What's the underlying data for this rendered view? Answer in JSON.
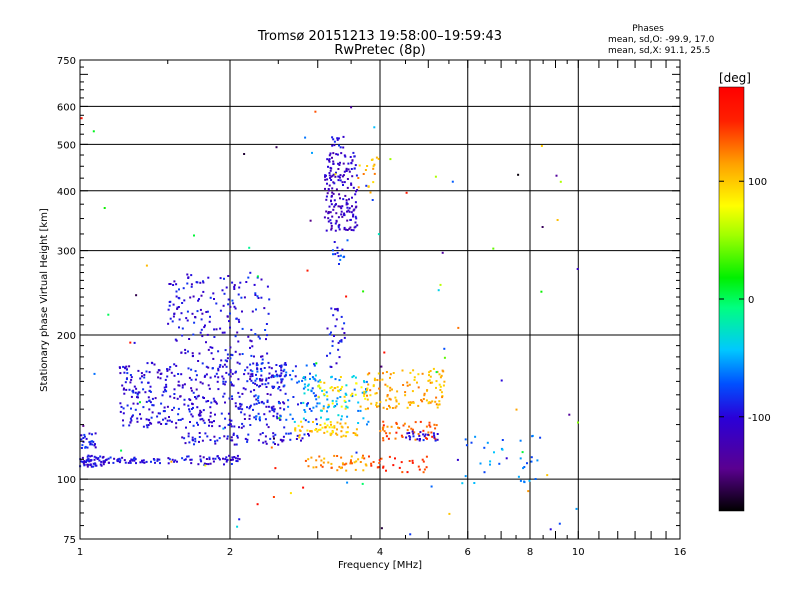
{
  "chart_data": {
    "type": "scatter",
    "title": "Tromsø 20151213 19:58:00–19:59:43",
    "subtitle": "RwPretec (8p)",
    "xlabel": "Frequency [MHz]",
    "ylabel": "Stationary phase Virtual Height [km]",
    "x_scale": "log",
    "y_scale": "log",
    "xlim": [
      1,
      16
    ],
    "ylim": [
      75,
      750
    ],
    "x_ticks": [
      1,
      2,
      4,
      6,
      8,
      10,
      16
    ],
    "x_tick_labels": [
      "1",
      "2",
      "4",
      "6",
      "8",
      "10",
      "16"
    ],
    "y_ticks": [
      75,
      100,
      200,
      300,
      400,
      500,
      600,
      750
    ],
    "y_tick_labels": [
      "75",
      "100",
      "200",
      "300",
      "400",
      "500",
      "600",
      "750"
    ],
    "grid": true,
    "grid_x": [
      2,
      4,
      6,
      8,
      10
    ],
    "grid_y": [
      100,
      200,
      300,
      400,
      500,
      600
    ],
    "stats": {
      "heading": "Phases",
      "line_o": "mean, sd,O: -99.9, 17.0",
      "line_x": "mean, sd,X:  91.1, 25.5"
    },
    "colorbar": {
      "label": "[deg]",
      "range": [
        -180,
        180
      ],
      "ticks": [
        -100,
        0,
        100
      ],
      "tick_labels": [
        "-100",
        "0",
        "100"
      ]
    },
    "clusters": [
      {
        "f": [
          1.0,
          1.12
        ],
        "h": [
          106,
          112
        ],
        "phase": -105,
        "n": 55
      },
      {
        "f": [
          1.12,
          1.45
        ],
        "h": [
          108,
          111
        ],
        "phase": -100,
        "n": 45
      },
      {
        "f": [
          1.5,
          2.1
        ],
        "h": [
          107,
          112
        ],
        "phase": -100,
        "n": 55
      },
      {
        "f": [
          1.0,
          1.08
        ],
        "h": [
          116,
          125
        ],
        "phase": -95,
        "n": 25
      },
      {
        "f": [
          1.6,
          2.9
        ],
        "h": [
          118,
          125
        ],
        "phase": -100,
        "n": 70
      },
      {
        "f": [
          1.2,
          2.6
        ],
        "h": [
          128,
          175
        ],
        "phase": -100,
        "n": 420
      },
      {
        "f": [
          1.5,
          2.1
        ],
        "h": [
          175,
          270
        ],
        "phase": -100,
        "n": 140
      },
      {
        "f": [
          2.0,
          2.4
        ],
        "h": [
          165,
          270
        ],
        "phase": -95,
        "n": 60
      },
      {
        "f": [
          2.2,
          3.0
        ],
        "h": [
          130,
          175
        ],
        "phase": -80,
        "n": 90
      },
      {
        "f": [
          2.8,
          3.8
        ],
        "h": [
          130,
          165
        ],
        "phase": -50,
        "n": 80
      },
      {
        "f": [
          2.7,
          3.6
        ],
        "h": [
          122,
          132
        ],
        "phase": 100,
        "n": 60
      },
      {
        "f": [
          3.0,
          3.8
        ],
        "h": [
          140,
          160
        ],
        "phase": 90,
        "n": 40
      },
      {
        "f": [
          3.7,
          5.4
        ],
        "h": [
          140,
          170
        ],
        "phase": 110,
        "n": 120
      },
      {
        "f": [
          4.0,
          5.2
        ],
        "h": [
          120,
          132
        ],
        "phase": 135,
        "n": 50
      },
      {
        "f": [
          2.8,
          3.8
        ],
        "h": [
          104,
          112
        ],
        "phase": 120,
        "n": 45
      },
      {
        "f": [
          3.8,
          5.0
        ],
        "h": [
          103,
          112
        ],
        "phase": 150,
        "n": 30
      },
      {
        "f": [
          4.5,
          5.3
        ],
        "h": [
          120,
          126
        ],
        "phase": -100,
        "n": 25
      },
      {
        "f": [
          3.1,
          3.6
        ],
        "h": [
          330,
          480
        ],
        "phase": -110,
        "n": 180
      },
      {
        "f": [
          3.2,
          3.4
        ],
        "h": [
          490,
          520
        ],
        "phase": -100,
        "n": 12
      },
      {
        "f": [
          3.2,
          3.4
        ],
        "h": [
          280,
          320
        ],
        "phase": -80,
        "n": 12
      },
      {
        "f": [
          3.1,
          3.4
        ],
        "h": [
          170,
          230
        ],
        "phase": -95,
        "n": 30
      },
      {
        "f": [
          3.6,
          4.0
        ],
        "h": [
          390,
          470
        ],
        "phase": 110,
        "n": 18
      },
      {
        "f": [
          5.8,
          8.5
        ],
        "h": [
          98,
          125
        ],
        "phase": -60,
        "n": 35
      },
      {
        "f": [
          1.0,
          10.0
        ],
        "h": [
          76,
          600
        ],
        "phase": 0,
        "n": 90
      }
    ]
  }
}
